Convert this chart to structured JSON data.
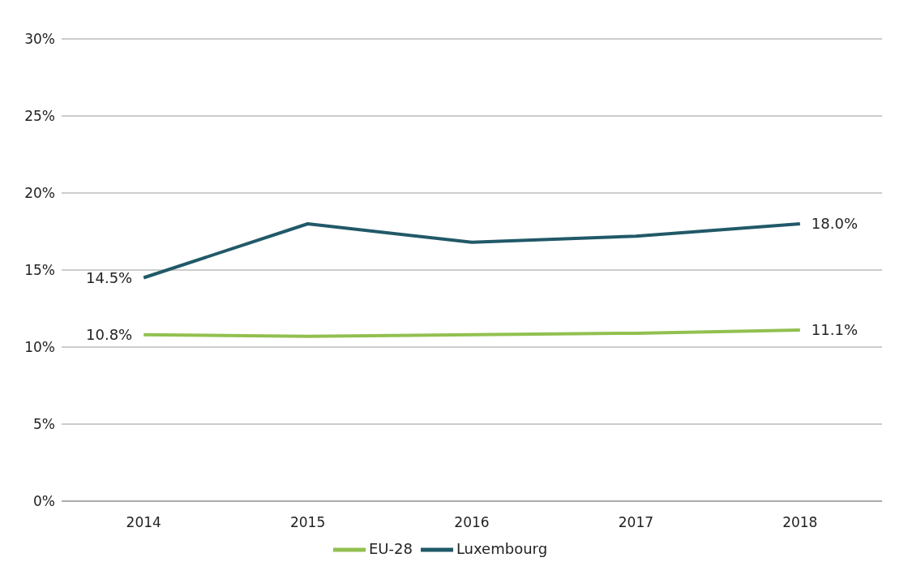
{
  "chart_data": {
    "type": "line",
    "categories": [
      "2014",
      "2015",
      "2016",
      "2017",
      "2018"
    ],
    "series": [
      {
        "name": "EU-28",
        "color": "#92c050",
        "values": [
          10.8,
          10.7,
          10.8,
          10.9,
          11.1
        ],
        "value_labels": [
          "10.8%",
          null,
          null,
          null,
          "11.1%"
        ]
      },
      {
        "name": "Luxembourg",
        "color": "#215968",
        "values": [
          14.5,
          18.0,
          16.8,
          17.2,
          18.0
        ],
        "value_labels": [
          "14.5%",
          null,
          null,
          null,
          "18.0%"
        ]
      }
    ],
    "ylim": [
      0,
      30
    ],
    "yticks": [
      {
        "value": 0,
        "label": "0%"
      },
      {
        "value": 5,
        "label": "5%"
      },
      {
        "value": 10,
        "label": "10%"
      },
      {
        "value": 15,
        "label": "15%"
      },
      {
        "value": 20,
        "label": "20%"
      },
      {
        "value": 25,
        "label": "25%"
      },
      {
        "value": 30,
        "label": "30%"
      }
    ],
    "grid": "y",
    "legend": "bottom",
    "marker": "none",
    "line_style": "solid"
  }
}
